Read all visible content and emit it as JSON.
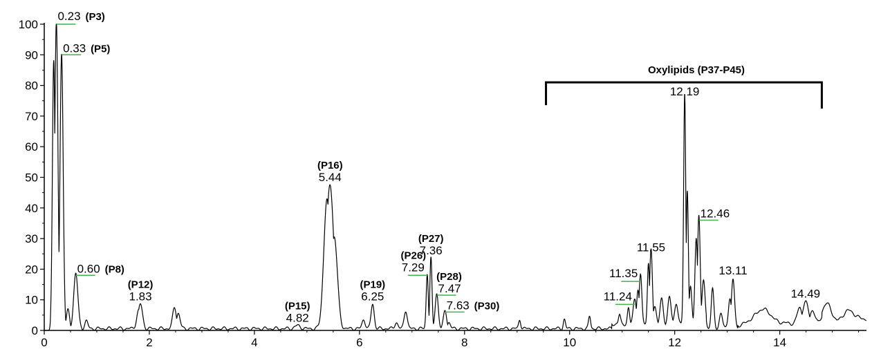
{
  "chart_data": {
    "type": "line",
    "title": "",
    "xlabel": "",
    "ylabel": "",
    "xlim": [
      0,
      15.65
    ],
    "ylim": [
      0,
      100
    ],
    "x_ticks": [
      0,
      2,
      4,
      6,
      8,
      10,
      12,
      14
    ],
    "y_ticks": [
      0,
      10,
      20,
      30,
      40,
      50,
      60,
      70,
      80,
      90,
      100
    ],
    "grid": false,
    "line_color": "#000000",
    "marker_color": "#3cb44b",
    "peaks": [
      {
        "time": 0.23,
        "label": "0.23",
        "id": "(P3)",
        "height": 100,
        "width": 0.03
      },
      {
        "time": 0.33,
        "label": "0.33",
        "id": "(P5)",
        "height": 90,
        "width": 0.03
      },
      {
        "time": 0.6,
        "label": "0.60",
        "id": "(P8)",
        "height": 18,
        "width": 0.04
      },
      {
        "time": 1.83,
        "label": "1.83",
        "id": "(P12)",
        "height": 8,
        "width": 0.04
      },
      {
        "time": 4.82,
        "label": "4.82",
        "id": "(P15)",
        "height": 1,
        "width": 0.05
      },
      {
        "time": 5.44,
        "label": "5.44",
        "id": "(P16)",
        "height": 47,
        "width": 0.07
      },
      {
        "time": 6.25,
        "label": "6.25",
        "id": "(P19)",
        "height": 8,
        "width": 0.03
      },
      {
        "time": 7.29,
        "label": "7.29",
        "id": "(P26)",
        "height": 18,
        "width": 0.02
      },
      {
        "time": 7.36,
        "label": "7.36",
        "id": "(P27)",
        "height": 23,
        "width": 0.02
      },
      {
        "time": 7.47,
        "label": "7.47",
        "id": "(P28)",
        "height": 11.5,
        "width": 0.03
      },
      {
        "time": 7.63,
        "label": "7.63",
        "id": "(P30)",
        "height": 6,
        "width": 0.03
      },
      {
        "time": 11.24,
        "label": "11.24",
        "id": "",
        "height": 8.5,
        "width": 0.03
      },
      {
        "time": 11.35,
        "label": "11.35",
        "id": "",
        "height": 16,
        "width": 0.025
      },
      {
        "time": 11.55,
        "label": "11.55",
        "id": "",
        "height": 24,
        "width": 0.025
      },
      {
        "time": 12.19,
        "label": "12.19",
        "id": "",
        "height": 75,
        "width": 0.02
      },
      {
        "time": 12.46,
        "label": "12.46",
        "id": "",
        "height": 36,
        "width": 0.025
      },
      {
        "time": 13.11,
        "label": "13.11",
        "id": "",
        "height": 16,
        "width": 0.03
      },
      {
        "time": 14.49,
        "label": "14.49",
        "id": "",
        "height": 8,
        "width": 0.06
      }
    ],
    "minor_peaks": [
      {
        "time": 0.18,
        "height": 88,
        "width": 0.025
      },
      {
        "time": 0.45,
        "height": 6,
        "width": 0.03
      },
      {
        "time": 0.8,
        "height": 2.5,
        "width": 0.03
      },
      {
        "time": 1.8,
        "height": 6,
        "width": 0.04
      },
      {
        "time": 2.48,
        "height": 7,
        "width": 0.035
      },
      {
        "time": 2.55,
        "height": 5,
        "width": 0.035
      },
      {
        "time": 5.38,
        "height": 42,
        "width": 0.06
      },
      {
        "time": 5.52,
        "height": 30,
        "width": 0.06
      },
      {
        "time": 6.08,
        "height": 3,
        "width": 0.03
      },
      {
        "time": 6.7,
        "height": 2,
        "width": 0.03
      },
      {
        "time": 6.88,
        "height": 6,
        "width": 0.03
      },
      {
        "time": 7.7,
        "height": 2,
        "width": 0.03
      },
      {
        "time": 9.05,
        "height": 3,
        "width": 0.02
      },
      {
        "time": 9.9,
        "height": 3,
        "width": 0.02
      },
      {
        "time": 10.38,
        "height": 4,
        "width": 0.02
      },
      {
        "time": 10.95,
        "height": 3,
        "width": 0.02
      },
      {
        "time": 11.12,
        "height": 5,
        "width": 0.02
      },
      {
        "time": 11.3,
        "height": 11,
        "width": 0.025
      },
      {
        "time": 11.5,
        "height": 20,
        "width": 0.02
      },
      {
        "time": 11.62,
        "height": 6,
        "width": 0.03
      },
      {
        "time": 11.75,
        "height": 8,
        "width": 0.03
      },
      {
        "time": 11.9,
        "height": 9,
        "width": 0.03
      },
      {
        "time": 12.03,
        "height": 7,
        "width": 0.03
      },
      {
        "time": 12.24,
        "height": 44,
        "width": 0.02
      },
      {
        "time": 12.3,
        "height": 12,
        "width": 0.025
      },
      {
        "time": 12.41,
        "height": 28,
        "width": 0.025
      },
      {
        "time": 12.55,
        "height": 14,
        "width": 0.03
      },
      {
        "time": 12.72,
        "height": 13,
        "width": 0.025
      },
      {
        "time": 12.88,
        "height": 5,
        "width": 0.03
      },
      {
        "time": 13.05,
        "height": 10,
        "width": 0.03
      },
      {
        "time": 13.7,
        "height": 5.5,
        "width": 0.15
      },
      {
        "time": 14.38,
        "height": 6,
        "width": 0.05
      },
      {
        "time": 14.62,
        "height": 5,
        "width": 0.05
      },
      {
        "time": 14.9,
        "height": 5,
        "width": 0.08
      },
      {
        "time": 15.3,
        "height": 3.5,
        "width": 0.1
      }
    ],
    "annotations": [
      {
        "label": "Oxylipids (P37-P45)",
        "x_start": 9.55,
        "x_end": 14.8,
        "y": 81
      }
    ]
  }
}
